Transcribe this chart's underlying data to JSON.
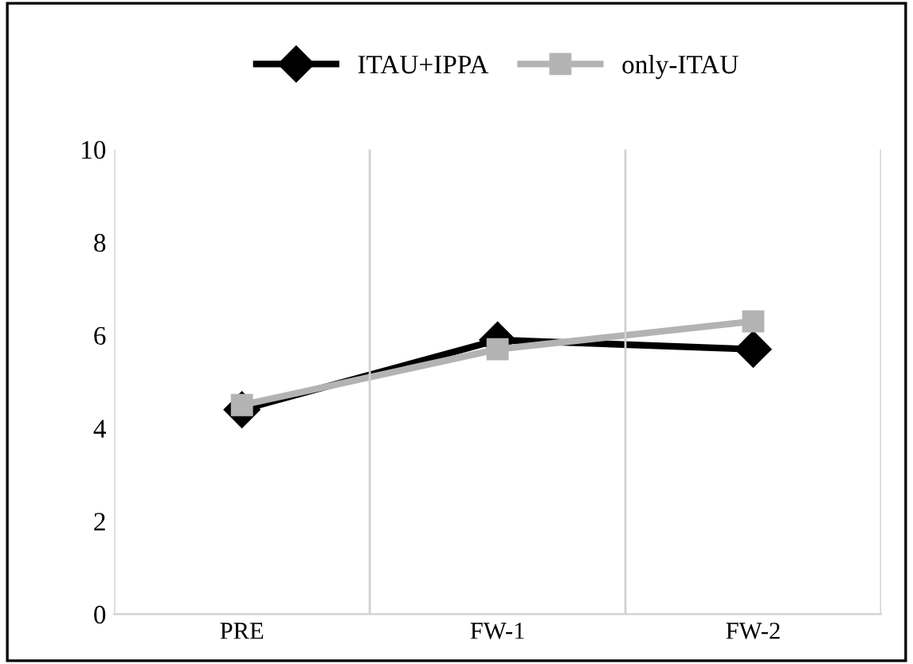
{
  "chart_data": {
    "type": "line",
    "categories": [
      "PRE",
      "FW-1",
      "FW-2"
    ],
    "series": [
      {
        "name": "ITAU+IPPA",
        "color": "#000000",
        "values": [
          4.4,
          5.9,
          5.7
        ],
        "marker": "diamond"
      },
      {
        "name": "only-ITAU",
        "color": "#b3b3b3",
        "values": [
          4.5,
          5.7,
          6.3
        ],
        "marker": "square"
      }
    ],
    "ylim": [
      0,
      10
    ],
    "yticks": [
      0,
      2,
      4,
      6,
      8,
      10
    ],
    "grid": "x",
    "legend": "top",
    "line_style": "solid"
  }
}
